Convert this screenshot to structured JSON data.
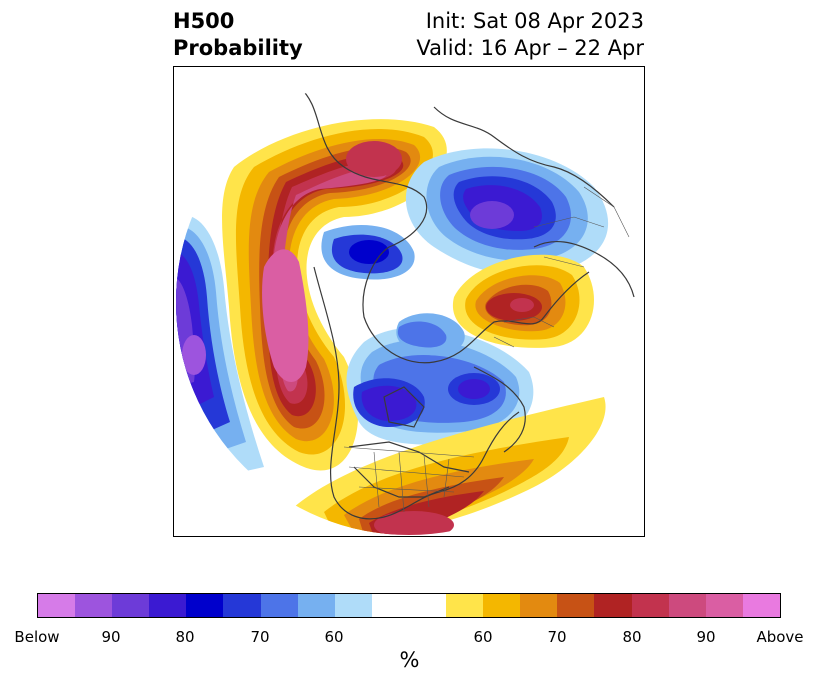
{
  "title": {
    "left_line1": "H500",
    "left_line2": "Probability",
    "right_line1": "Init: Sat 08 Apr 2023",
    "right_line2": "Valid: 16 Apr – 22 Apr"
  },
  "map": {
    "projection": "north-polar-stereographic",
    "field": "500 hPa height probability (below / above normal)",
    "features": [
      "Strong above-normal (magenta/red) anomaly over the North Pacific / Alaska region",
      "Below-normal (blue/purple) anomaly over Siberia / Arctic",
      "Below-normal (blue) anomaly over central Canada",
      "Above-normal (red/orange) anomaly over Scandinavia / northern Europe",
      "Above-normal (red/orange) anomaly over the southeastern United States",
      "Below-normal (purple) anomaly far western Pacific edge"
    ]
  },
  "colorbar": {
    "colors": [
      "#d67be8",
      "#9d54de",
      "#6d3bd8",
      "#3b1ad2",
      "#0000cc",
      "#2538d7",
      "#4d74e8",
      "#76b0f0",
      "#afdcf9",
      "#ffffff",
      "#ffe44a",
      "#f4b700",
      "#e38a10",
      "#c75215",
      "#b02323",
      "#c2334e",
      "#cd4a7e",
      "#da5ea3",
      "#e97ae0"
    ],
    "tick_labels": [
      "Below",
      "90",
      "80",
      "70",
      "60",
      "60",
      "70",
      "80",
      "90",
      "Above"
    ],
    "unit_label": "%"
  }
}
